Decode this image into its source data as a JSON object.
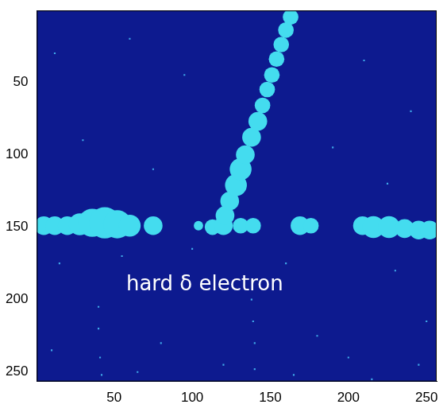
{
  "chart_data": {
    "type": "scatter",
    "background": "#0d1a8f",
    "xlim": [
      0.5,
      256.5
    ],
    "ylim": [
      256.5,
      0.5
    ],
    "xticks": [
      50,
      100,
      150,
      200,
      250
    ],
    "yticks": [
      50,
      100,
      150,
      200,
      250
    ],
    "grid": false,
    "annotation": {
      "text": "hard δ electron",
      "x": 108,
      "y": 190,
      "color": "#ffffff"
    },
    "series": [
      {
        "color": "#44dcef",
        "marker": "blob",
        "values": [
          {
            "x": 5,
            "y": 149,
            "size": 6
          },
          {
            "x": 12,
            "y": 149,
            "size": 6
          },
          {
            "x": 20,
            "y": 149,
            "size": 6
          },
          {
            "x": 28,
            "y": 148,
            "size": 7
          },
          {
            "x": 36,
            "y": 147,
            "size": 9
          },
          {
            "x": 44,
            "y": 147,
            "size": 10
          },
          {
            "x": 52,
            "y": 148,
            "size": 9
          },
          {
            "x": 60,
            "y": 149,
            "size": 7
          },
          {
            "x": 75,
            "y": 149,
            "size": 6
          },
          {
            "x": 104,
            "y": 149,
            "size": 3
          },
          {
            "x": 113,
            "y": 150,
            "size": 5
          },
          {
            "x": 120,
            "y": 149,
            "size": 6
          },
          {
            "x": 131,
            "y": 149,
            "size": 5
          },
          {
            "x": 139,
            "y": 149,
            "size": 5
          },
          {
            "x": 169,
            "y": 149,
            "size": 6
          },
          {
            "x": 176,
            "y": 149,
            "size": 5
          },
          {
            "x": 209,
            "y": 149,
            "size": 6
          },
          {
            "x": 216,
            "y": 150,
            "size": 7
          },
          {
            "x": 226,
            "y": 150,
            "size": 7
          },
          {
            "x": 236,
            "y": 151,
            "size": 6
          },
          {
            "x": 245,
            "y": 152,
            "size": 6
          },
          {
            "x": 252,
            "y": 152,
            "size": 6
          },
          {
            "x": 121,
            "y": 142,
            "size": 6
          },
          {
            "x": 124,
            "y": 132,
            "size": 6
          },
          {
            "x": 128,
            "y": 121,
            "size": 7
          },
          {
            "x": 131,
            "y": 110,
            "size": 7
          },
          {
            "x": 134,
            "y": 100,
            "size": 6
          },
          {
            "x": 138,
            "y": 88,
            "size": 6
          },
          {
            "x": 142,
            "y": 77,
            "size": 6
          },
          {
            "x": 145,
            "y": 66,
            "size": 5
          },
          {
            "x": 148,
            "y": 55,
            "size": 5
          },
          {
            "x": 151,
            "y": 45,
            "size": 5
          },
          {
            "x": 154,
            "y": 34,
            "size": 5
          },
          {
            "x": 157,
            "y": 24,
            "size": 5
          },
          {
            "x": 160,
            "y": 14,
            "size": 5
          },
          {
            "x": 163,
            "y": 5,
            "size": 5
          }
        ]
      },
      {
        "color": "#3fa9e8",
        "marker": "dot",
        "values": [
          {
            "x": 12,
            "y": 30
          },
          {
            "x": 60,
            "y": 20
          },
          {
            "x": 95,
            "y": 45
          },
          {
            "x": 210,
            "y": 35
          },
          {
            "x": 240,
            "y": 70
          },
          {
            "x": 30,
            "y": 90
          },
          {
            "x": 75,
            "y": 110
          },
          {
            "x": 190,
            "y": 95
          },
          {
            "x": 225,
            "y": 120
          },
          {
            "x": 15,
            "y": 175
          },
          {
            "x": 55,
            "y": 170
          },
          {
            "x": 100,
            "y": 165
          },
          {
            "x": 160,
            "y": 175
          },
          {
            "x": 230,
            "y": 180
          },
          {
            "x": 40,
            "y": 205
          },
          {
            "x": 40,
            "y": 220
          },
          {
            "x": 41,
            "y": 240
          },
          {
            "x": 42,
            "y": 252
          },
          {
            "x": 138,
            "y": 200
          },
          {
            "x": 139,
            "y": 215
          },
          {
            "x": 140,
            "y": 230
          },
          {
            "x": 140,
            "y": 248
          },
          {
            "x": 80,
            "y": 230
          },
          {
            "x": 120,
            "y": 245
          },
          {
            "x": 180,
            "y": 225
          },
          {
            "x": 200,
            "y": 240
          },
          {
            "x": 250,
            "y": 215
          },
          {
            "x": 10,
            "y": 235
          },
          {
            "x": 65,
            "y": 250
          },
          {
            "x": 165,
            "y": 252
          },
          {
            "x": 215,
            "y": 255
          },
          {
            "x": 245,
            "y": 245
          }
        ]
      }
    ]
  }
}
